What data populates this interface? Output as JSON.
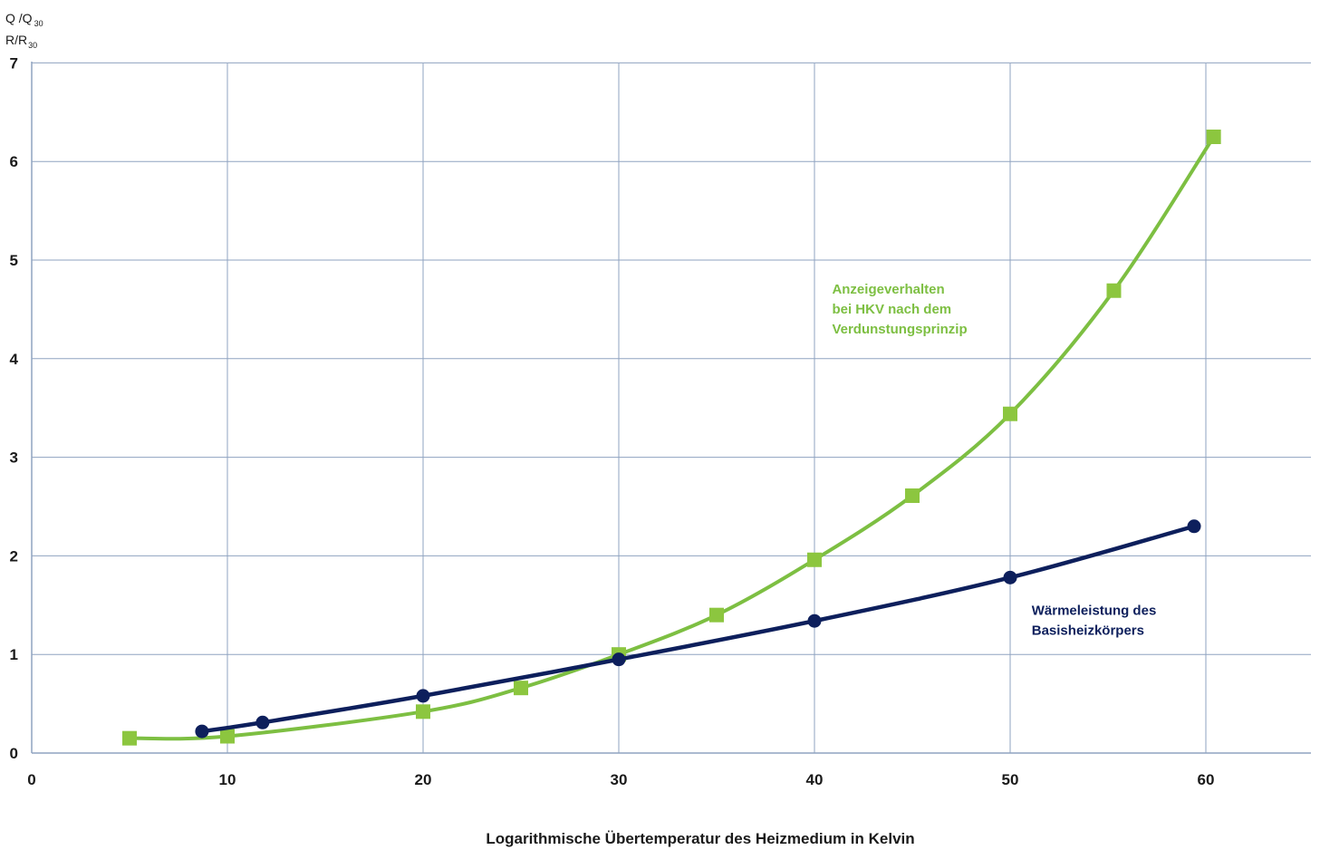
{
  "chart_data": {
    "type": "line",
    "xlabel": "Logarithmische Übertemperatur des Heizmedium in Kelvin",
    "ylabel_line1": {
      "main": "Q /Q",
      "sub": "30"
    },
    "ylabel_line2": {
      "main": "R/R",
      "sub": "30"
    },
    "xlim": [
      0,
      65
    ],
    "ylim": [
      0,
      7
    ],
    "x_ticks": [
      0,
      10,
      20,
      30,
      40,
      50,
      60
    ],
    "y_ticks": [
      0,
      1,
      2,
      3,
      4,
      5,
      6,
      7
    ],
    "grid": true,
    "colors": {
      "grid": "#8fa3c0",
      "axis": "#8fa3c0",
      "green": "#7dbf42",
      "marker_green": "#8cc63f",
      "navy": "#0d1f5c"
    },
    "series": [
      {
        "name": "Anzeigeverhalten bei HKV nach dem Verdunstungsprinzip",
        "marker": "square",
        "color": "green",
        "points": [
          [
            5,
            0.15
          ],
          [
            10,
            0.17
          ],
          [
            20,
            0.42
          ],
          [
            25,
            0.66
          ],
          [
            30,
            1.0
          ],
          [
            35,
            1.4
          ],
          [
            40,
            1.96
          ],
          [
            45,
            2.61
          ],
          [
            50,
            3.44
          ],
          [
            55.3,
            4.69
          ],
          [
            60.4,
            6.25
          ]
        ]
      },
      {
        "name": "Wärmeleistung des Basisheizkörpers",
        "marker": "circle",
        "color": "navy",
        "points": [
          [
            8.7,
            0.22
          ],
          [
            11.8,
            0.31
          ],
          [
            20,
            0.58
          ],
          [
            30,
            0.95
          ],
          [
            40,
            1.34
          ],
          [
            50,
            1.78
          ],
          [
            59.4,
            2.3
          ]
        ]
      }
    ],
    "annotations": [
      {
        "lines": [
          "Anzeigeverhalten",
          "bei HKV nach dem",
          "Verdunstungsprinzip"
        ],
        "color": "green",
        "anchor": [
          40.9,
          4.66
        ]
      },
      {
        "lines": [
          "Wärmeleistung des",
          "Basisheizkörpers"
        ],
        "color": "navy",
        "anchor": [
          51.1,
          1.4
        ]
      }
    ]
  }
}
